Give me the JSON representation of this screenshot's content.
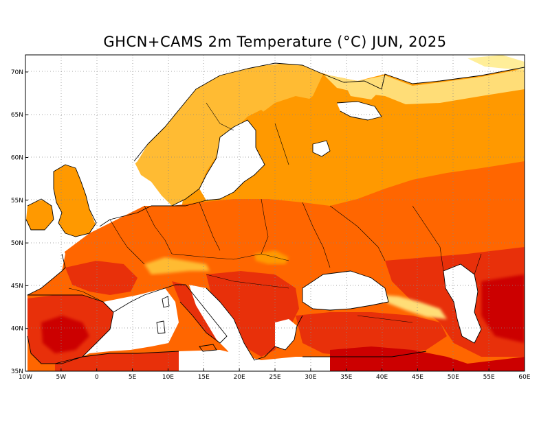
{
  "title": "GHCN+CAMS 2m Temperature (°C) JUN, 2025",
  "colors": {
    "water": "#ffffff",
    "very_warm": "#cc0000",
    "warm_dark": "#e8300a",
    "warm": "#ff6600",
    "orange": "#ff9900",
    "light_orange": "#ffbb33",
    "pale": "#ffdd77",
    "very_pale": "#ffee99"
  },
  "chart_data": {
    "type": "heatmap",
    "title": "GHCN+CAMS 2m Temperature (°C) JUN, 2025",
    "xlim": [
      -10,
      60
    ],
    "ylim": [
      35,
      72
    ],
    "grid": true,
    "x_ticks": [
      {
        "value": -10,
        "label": "10W"
      },
      {
        "value": -5,
        "label": "5W"
      },
      {
        "value": 0,
        "label": "0"
      },
      {
        "value": 5,
        "label": "5E"
      },
      {
        "value": 10,
        "label": "10E"
      },
      {
        "value": 15,
        "label": "15E"
      },
      {
        "value": 20,
        "label": "20E"
      },
      {
        "value": 25,
        "label": "25E"
      },
      {
        "value": 30,
        "label": "30E"
      },
      {
        "value": 35,
        "label": "35E"
      },
      {
        "value": 40,
        "label": "40E"
      },
      {
        "value": 45,
        "label": "45E"
      },
      {
        "value": 50,
        "label": "50E"
      },
      {
        "value": 55,
        "label": "55E"
      },
      {
        "value": 60,
        "label": "60E"
      }
    ],
    "y_ticks": [
      {
        "value": 35,
        "label": "35N"
      },
      {
        "value": 40,
        "label": "40N"
      },
      {
        "value": 45,
        "label": "45N"
      },
      {
        "value": 50,
        "label": "50N"
      },
      {
        "value": 55,
        "label": "55N"
      },
      {
        "value": 60,
        "label": "60N"
      },
      {
        "value": 65,
        "label": "65N"
      },
      {
        "value": 70,
        "label": "70N"
      }
    ]
  }
}
